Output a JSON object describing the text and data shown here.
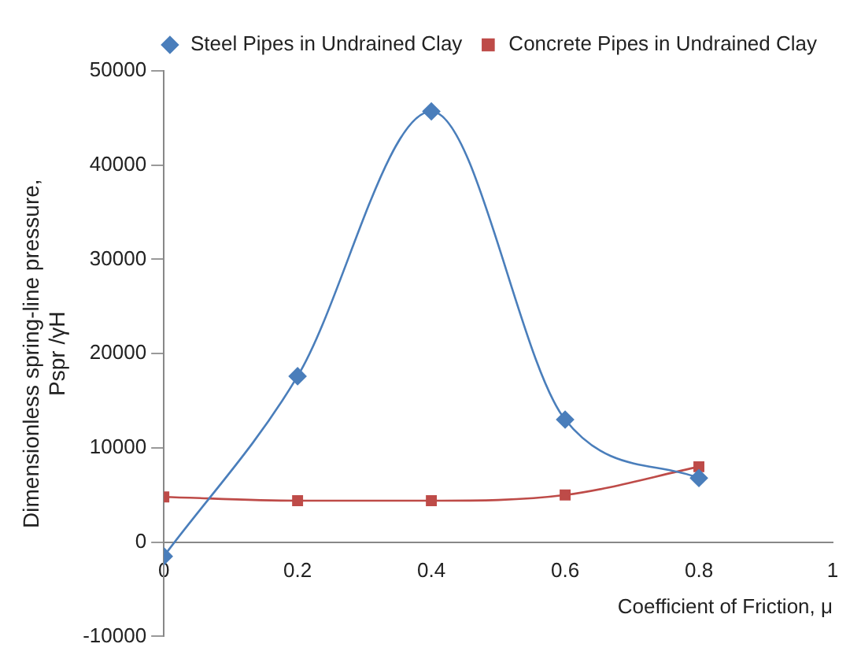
{
  "chart_data": {
    "type": "line",
    "xlabel": "Coefficient of Friction, μ",
    "ylabel": "Dimensionless spring-line pressure,\nPspr /γH",
    "x": [
      0,
      0.2,
      0.4,
      0.6,
      0.8
    ],
    "series": [
      {
        "name": "Steel Pipes in Undrained Clay",
        "color": "#4a7ebb",
        "marker": "diamond",
        "values": [
          -1500,
          17600,
          45700,
          13000,
          6800
        ]
      },
      {
        "name": "Concrete Pipes in Undrained Clay",
        "color": "#be4b48",
        "marker": "square",
        "values": [
          4800,
          4400,
          4400,
          5000,
          8000
        ]
      }
    ],
    "xlim": [
      0,
      1
    ],
    "xticks": [
      0,
      0.2,
      0.4,
      0.6,
      0.8,
      1
    ],
    "ylim": [
      -10000,
      50000
    ],
    "yticks": [
      -10000,
      0,
      10000,
      20000,
      30000,
      40000,
      50000
    ],
    "grid": false,
    "legend": "top right"
  }
}
